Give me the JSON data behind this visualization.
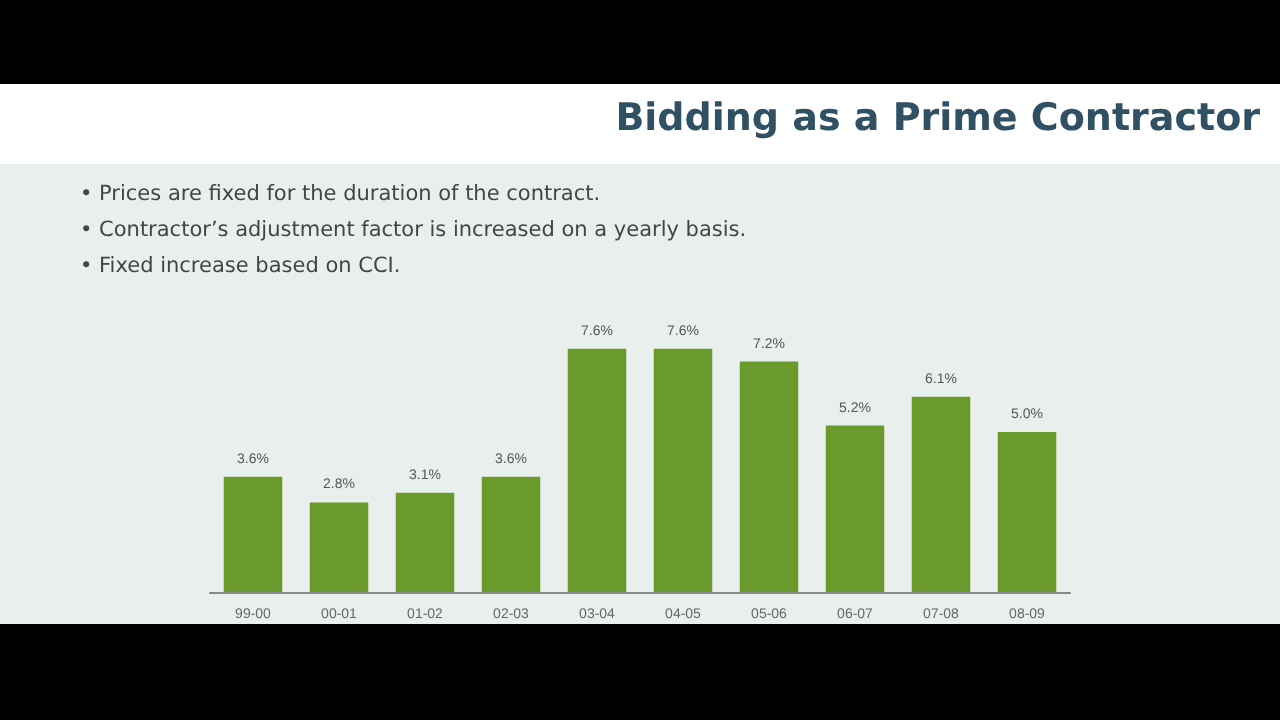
{
  "chart_data": {
    "type": "bar",
    "title": "Bidding as a Prime Contractor",
    "annotations": [
      "• Prices are fixed for the duration of the contract.",
      "• Contractor’s adjustment factor is increased on a yearly basis.",
      "• Fixed increase based on CCI."
    ],
    "categories": [
      "99-00",
      "00-01",
      "01-02",
      "02-03",
      "03-04",
      "04-05",
      "05-06",
      "06-07",
      "07-08",
      "08-09"
    ],
    "values": [
      3.6,
      2.8,
      3.1,
      3.6,
      7.6,
      7.6,
      7.2,
      5.2,
      6.1,
      5.0
    ],
    "value_labels": [
      "3.6%",
      "2.8%",
      "3.1%",
      "3.6%",
      "7.6%",
      "7.6%",
      "7.2%",
      "5.2%",
      "6.1%",
      "5.0%"
    ],
    "color": "#6b9a2c"
  }
}
